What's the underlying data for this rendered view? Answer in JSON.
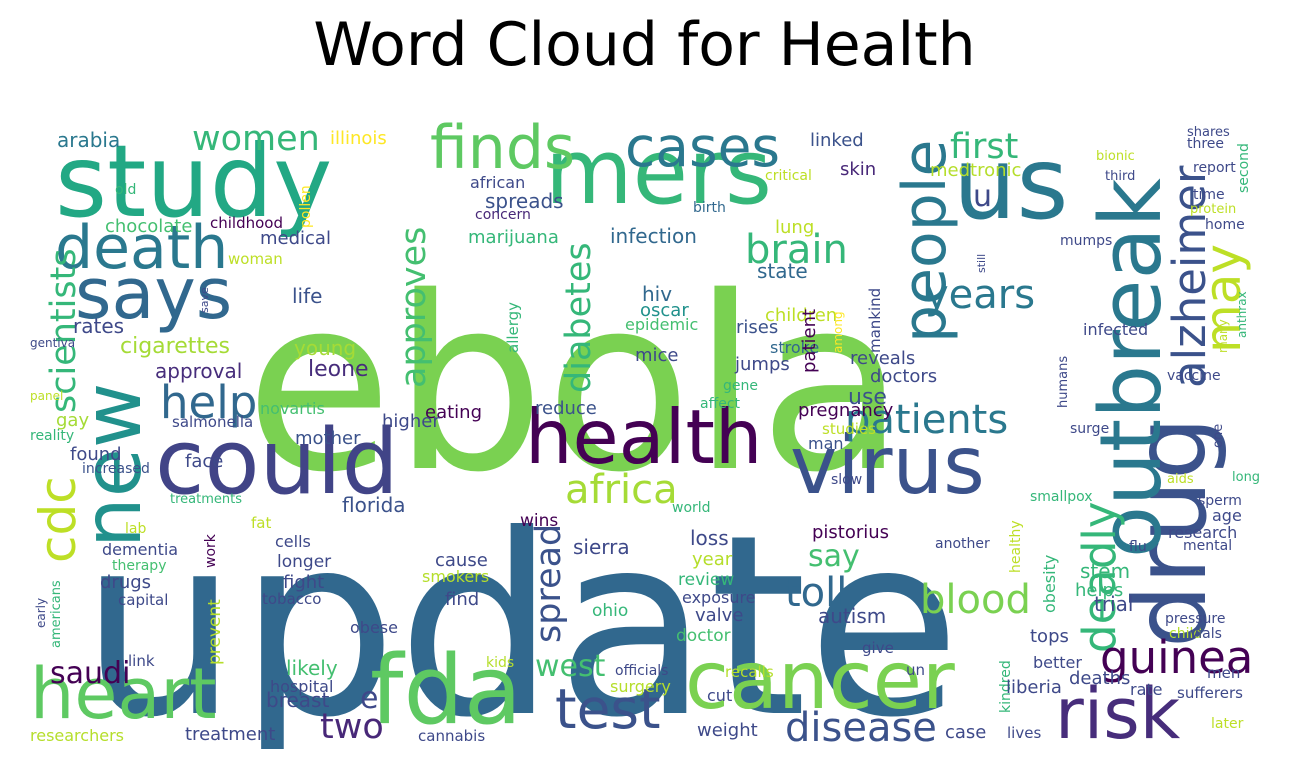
{
  "title": "Word Cloud for Health",
  "colormap": "viridis",
  "words": [
    {
      "text": "update",
      "color": "#31688e"
    },
    {
      "text": "ebola",
      "color": "#7ad151"
    },
    {
      "text": "study",
      "color": "#22a884"
    },
    {
      "text": "us",
      "color": "#2a788e"
    },
    {
      "text": "mers",
      "color": "#35b779"
    },
    {
      "text": "could",
      "color": "#414487"
    },
    {
      "text": "health",
      "color": "#440154"
    },
    {
      "text": "virus",
      "color": "#3b528b"
    },
    {
      "text": "cancer",
      "color": "#7ad151"
    },
    {
      "text": "drug",
      "color": "#3b528b"
    },
    {
      "text": "outbreak",
      "color": "#2a788e"
    },
    {
      "text": "new",
      "color": "#21918c"
    },
    {
      "text": "fda",
      "color": "#5ec962"
    },
    {
      "text": "heart",
      "color": "#5ec962"
    },
    {
      "text": "says",
      "color": "#31688e"
    },
    {
      "text": "death",
      "color": "#2a788e"
    },
    {
      "text": "risk",
      "color": "#472d7b"
    },
    {
      "text": "finds",
      "color": "#5ec962"
    },
    {
      "text": "cases",
      "color": "#2a788e"
    },
    {
      "text": "people",
      "color": "#2a788e"
    },
    {
      "text": "alzheimer",
      "color": "#3b528b"
    },
    {
      "text": "may",
      "color": "#bddf26"
    },
    {
      "text": "deadly",
      "color": "#35b779"
    },
    {
      "text": "guinea",
      "color": "#440154"
    },
    {
      "text": "test",
      "color": "#3b528b"
    },
    {
      "text": "cdc",
      "color": "#bddf26"
    },
    {
      "text": "help",
      "color": "#31688e"
    },
    {
      "text": "africa",
      "color": "#a5db36"
    },
    {
      "text": "patients",
      "color": "#2a788e"
    },
    {
      "text": "brain",
      "color": "#35b779"
    },
    {
      "text": "approves",
      "color": "#44bf70"
    },
    {
      "text": "diabetes",
      "color": "#35b779"
    },
    {
      "text": "scientists",
      "color": "#35b779"
    },
    {
      "text": "women",
      "color": "#35b779"
    },
    {
      "text": "first",
      "color": "#35b779"
    },
    {
      "text": "years",
      "color": "#2a788e"
    },
    {
      "text": "blood",
      "color": "#7ad151"
    },
    {
      "text": "toll",
      "color": "#31688e"
    },
    {
      "text": "say",
      "color": "#44bf70"
    },
    {
      "text": "disease",
      "color": "#3b528b"
    },
    {
      "text": "spread",
      "color": "#3b528b"
    },
    {
      "text": "west",
      "color": "#44bf70"
    },
    {
      "text": "saudi",
      "color": "#440154"
    },
    {
      "text": "two",
      "color": "#482878"
    },
    {
      "text": "e",
      "color": "#3e4989"
    },
    {
      "text": "u",
      "color": "#3e4989"
    },
    {
      "text": "arabia",
      "color": "#2a788e"
    },
    {
      "text": "illinois",
      "color": "#fde725"
    },
    {
      "text": "linked",
      "color": "#3b528b"
    },
    {
      "text": "skin",
      "color": "#482878"
    },
    {
      "text": "medtronic",
      "color": "#b5de2b"
    },
    {
      "text": "african",
      "color": "#3e4989"
    },
    {
      "text": "critical",
      "color": "#bddf26"
    },
    {
      "text": "spreads",
      "color": "#3b528b"
    },
    {
      "text": "concern",
      "color": "#482878"
    },
    {
      "text": "birth",
      "color": "#31688e"
    },
    {
      "text": "chocolate",
      "color": "#44bf70"
    },
    {
      "text": "childhood",
      "color": "#440154"
    },
    {
      "text": "old",
      "color": "#35b779"
    },
    {
      "text": "pollen",
      "color": "#fde725"
    },
    {
      "text": "medical",
      "color": "#3e4989"
    },
    {
      "text": "marijuana",
      "color": "#35b779"
    },
    {
      "text": "infection",
      "color": "#31688e"
    },
    {
      "text": "lung",
      "color": "#bddf26"
    },
    {
      "text": "state",
      "color": "#31688e"
    },
    {
      "text": "children",
      "color": "#bddf26"
    },
    {
      "text": "woman",
      "color": "#bddf26"
    },
    {
      "text": "life",
      "color": "#3b528b"
    },
    {
      "text": "hiv",
      "color": "#31688e"
    },
    {
      "text": "oscar",
      "color": "#21918c"
    },
    {
      "text": "epidemic",
      "color": "#44bf70"
    },
    {
      "text": "rises",
      "color": "#3b528b"
    },
    {
      "text": "stroke",
      "color": "#31688e"
    },
    {
      "text": "among",
      "color": "#fde725"
    },
    {
      "text": "patient",
      "color": "#440154"
    },
    {
      "text": "mankind",
      "color": "#3e4989"
    },
    {
      "text": "rates",
      "color": "#3e4989"
    },
    {
      "text": "cigarettes",
      "color": "#a5db36"
    },
    {
      "text": "young",
      "color": "#a5db36"
    },
    {
      "text": "leone",
      "color": "#472d7b"
    },
    {
      "text": "allergy",
      "color": "#35b779"
    },
    {
      "text": "mice",
      "color": "#3e4989"
    },
    {
      "text": "jumps",
      "color": "#3e4989"
    },
    {
      "text": "reveals",
      "color": "#3e4989"
    },
    {
      "text": "doctors",
      "color": "#3e4989"
    },
    {
      "text": "gene",
      "color": "#35b779"
    },
    {
      "text": "approval",
      "color": "#472d7b"
    },
    {
      "text": "eating",
      "color": "#440154"
    },
    {
      "text": "reduce",
      "color": "#3b528b"
    },
    {
      "text": "affect",
      "color": "#35b779"
    },
    {
      "text": "pregnancy",
      "color": "#440154"
    },
    {
      "text": "gay",
      "color": "#a5db36"
    },
    {
      "text": "novartis",
      "color": "#44bf70"
    },
    {
      "text": "higher",
      "color": "#3e4989"
    },
    {
      "text": "salmonella",
      "color": "#3e4989"
    },
    {
      "text": "reality",
      "color": "#35b779"
    },
    {
      "text": "mother",
      "color": "#3b528b"
    },
    {
      "text": "studies",
      "color": "#bddf26"
    },
    {
      "text": "man",
      "color": "#3b528b"
    },
    {
      "text": "use",
      "color": "#3b528b"
    },
    {
      "text": "found",
      "color": "#3e4989"
    },
    {
      "text": "face",
      "color": "#3e4989"
    },
    {
      "text": "increased",
      "color": "#3b528b"
    },
    {
      "text": "treatments",
      "color": "#35b779"
    },
    {
      "text": "florida",
      "color": "#3b528b"
    },
    {
      "text": "fat",
      "color": "#bddf26"
    },
    {
      "text": "cells",
      "color": "#3e4989"
    },
    {
      "text": "lab",
      "color": "#bddf26"
    },
    {
      "text": "dementia",
      "color": "#3e4989"
    },
    {
      "text": "therapy",
      "color": "#44bf70"
    },
    {
      "text": "work",
      "color": "#440154"
    },
    {
      "text": "longer",
      "color": "#3e4989"
    },
    {
      "text": "fight",
      "color": "#3e4989"
    },
    {
      "text": "cause",
      "color": "#3e4989"
    },
    {
      "text": "smokers",
      "color": "#b5de2b"
    },
    {
      "text": "find",
      "color": "#3e4989"
    },
    {
      "text": "tobacco",
      "color": "#3e4989"
    },
    {
      "text": "drugs",
      "color": "#3e4989"
    },
    {
      "text": "capital",
      "color": "#3e4989"
    },
    {
      "text": "prevent",
      "color": "#b5de2b"
    },
    {
      "text": "wins",
      "color": "#440154"
    },
    {
      "text": "sierra",
      "color": "#3e4989"
    },
    {
      "text": "loss",
      "color": "#3e4989"
    },
    {
      "text": "year",
      "color": "#b5de2b"
    },
    {
      "text": "review",
      "color": "#35b779"
    },
    {
      "text": "exposure",
      "color": "#3e4989"
    },
    {
      "text": "valve",
      "color": "#3e4989"
    },
    {
      "text": "ohio",
      "color": "#35b779"
    },
    {
      "text": "obese",
      "color": "#3e4989"
    },
    {
      "text": "doctor",
      "color": "#44bf70"
    },
    {
      "text": "pistorius",
      "color": "#440154"
    },
    {
      "text": "autism",
      "color": "#3e4989"
    },
    {
      "text": "world",
      "color": "#35b779"
    },
    {
      "text": "slow",
      "color": "#3e4989"
    },
    {
      "text": "smallpox",
      "color": "#35b779"
    },
    {
      "text": "another",
      "color": "#3e4989"
    },
    {
      "text": "healthy",
      "color": "#bddf26"
    },
    {
      "text": "obesity",
      "color": "#35b779"
    },
    {
      "text": "helps",
      "color": "#35b779"
    },
    {
      "text": "stem",
      "color": "#35b779"
    },
    {
      "text": "trial",
      "color": "#3e4989"
    },
    {
      "text": "give",
      "color": "#3e4989"
    },
    {
      "text": "tops",
      "color": "#3e4989"
    },
    {
      "text": "kindred",
      "color": "#35b779"
    },
    {
      "text": "un",
      "color": "#3e4989"
    },
    {
      "text": "better",
      "color": "#3e4989"
    },
    {
      "text": "deaths",
      "color": "#3e4989"
    },
    {
      "text": "liberia",
      "color": "#3e4989"
    },
    {
      "text": "rate",
      "color": "#3e4989"
    },
    {
      "text": "sufferers",
      "color": "#3e4989"
    },
    {
      "text": "men",
      "color": "#3e4989"
    },
    {
      "text": "case",
      "color": "#3e4989"
    },
    {
      "text": "lives",
      "color": "#3e4989"
    },
    {
      "text": "later",
      "color": "#bddf26"
    },
    {
      "text": "weight",
      "color": "#3e4989"
    },
    {
      "text": "cut",
      "color": "#3e4989"
    },
    {
      "text": "recalls",
      "color": "#b5de2b"
    },
    {
      "text": "officials",
      "color": "#3e4989"
    },
    {
      "text": "surgery",
      "color": "#b5de2b"
    },
    {
      "text": "kids",
      "color": "#b5de2b"
    },
    {
      "text": "link",
      "color": "#3e4989"
    },
    {
      "text": "likely",
      "color": "#44bf70"
    },
    {
      "text": "hospital",
      "color": "#3e4989"
    },
    {
      "text": "breast",
      "color": "#3e4989"
    },
    {
      "text": "treatment",
      "color": "#3e4989"
    },
    {
      "text": "researchers",
      "color": "#b5de2b"
    },
    {
      "text": "cannabis",
      "color": "#3e4989"
    },
    {
      "text": "americans",
      "color": "#35b779"
    },
    {
      "text": "early",
      "color": "#3e4989"
    },
    {
      "text": "research",
      "color": "#3e4989"
    },
    {
      "text": "age",
      "color": "#3e4989"
    },
    {
      "text": "mental",
      "color": "#3e4989"
    },
    {
      "text": "flu",
      "color": "#3e4989"
    },
    {
      "text": "sperm",
      "color": "#3e4989"
    },
    {
      "text": "aids",
      "color": "#bddf26"
    },
    {
      "text": "long",
      "color": "#35b779"
    },
    {
      "text": "one",
      "color": "#3e4989"
    },
    {
      "text": "surge",
      "color": "#3e4989"
    },
    {
      "text": "humans",
      "color": "#3e4989"
    },
    {
      "text": "pressure",
      "color": "#3e4989"
    },
    {
      "text": "child",
      "color": "#b5de2b"
    },
    {
      "text": "vials",
      "color": "#3e4989"
    },
    {
      "text": "vaccine",
      "color": "#3e4989"
    },
    {
      "text": "infected",
      "color": "#3e4989"
    },
    {
      "text": "many",
      "color": "#bddf26"
    },
    {
      "text": "anthrax",
      "color": "#35b779"
    },
    {
      "text": "mumps",
      "color": "#3e4989"
    },
    {
      "text": "home",
      "color": "#3e4989"
    },
    {
      "text": "time",
      "color": "#3e4989"
    },
    {
      "text": "protein",
      "color": "#bddf26"
    },
    {
      "text": "report",
      "color": "#3e4989"
    },
    {
      "text": "three",
      "color": "#3e4989"
    },
    {
      "text": "shares",
      "color": "#3e4989"
    },
    {
      "text": "second",
      "color": "#35b779"
    },
    {
      "text": "bionic",
      "color": "#bddf26"
    },
    {
      "text": "third",
      "color": "#3e4989"
    },
    {
      "text": "still",
      "color": "#3e4989"
    },
    {
      "text": "save",
      "color": "#3e4989"
    },
    {
      "text": "gentiva",
      "color": "#3e4989"
    },
    {
      "text": "panel",
      "color": "#bddf26"
    }
  ]
}
